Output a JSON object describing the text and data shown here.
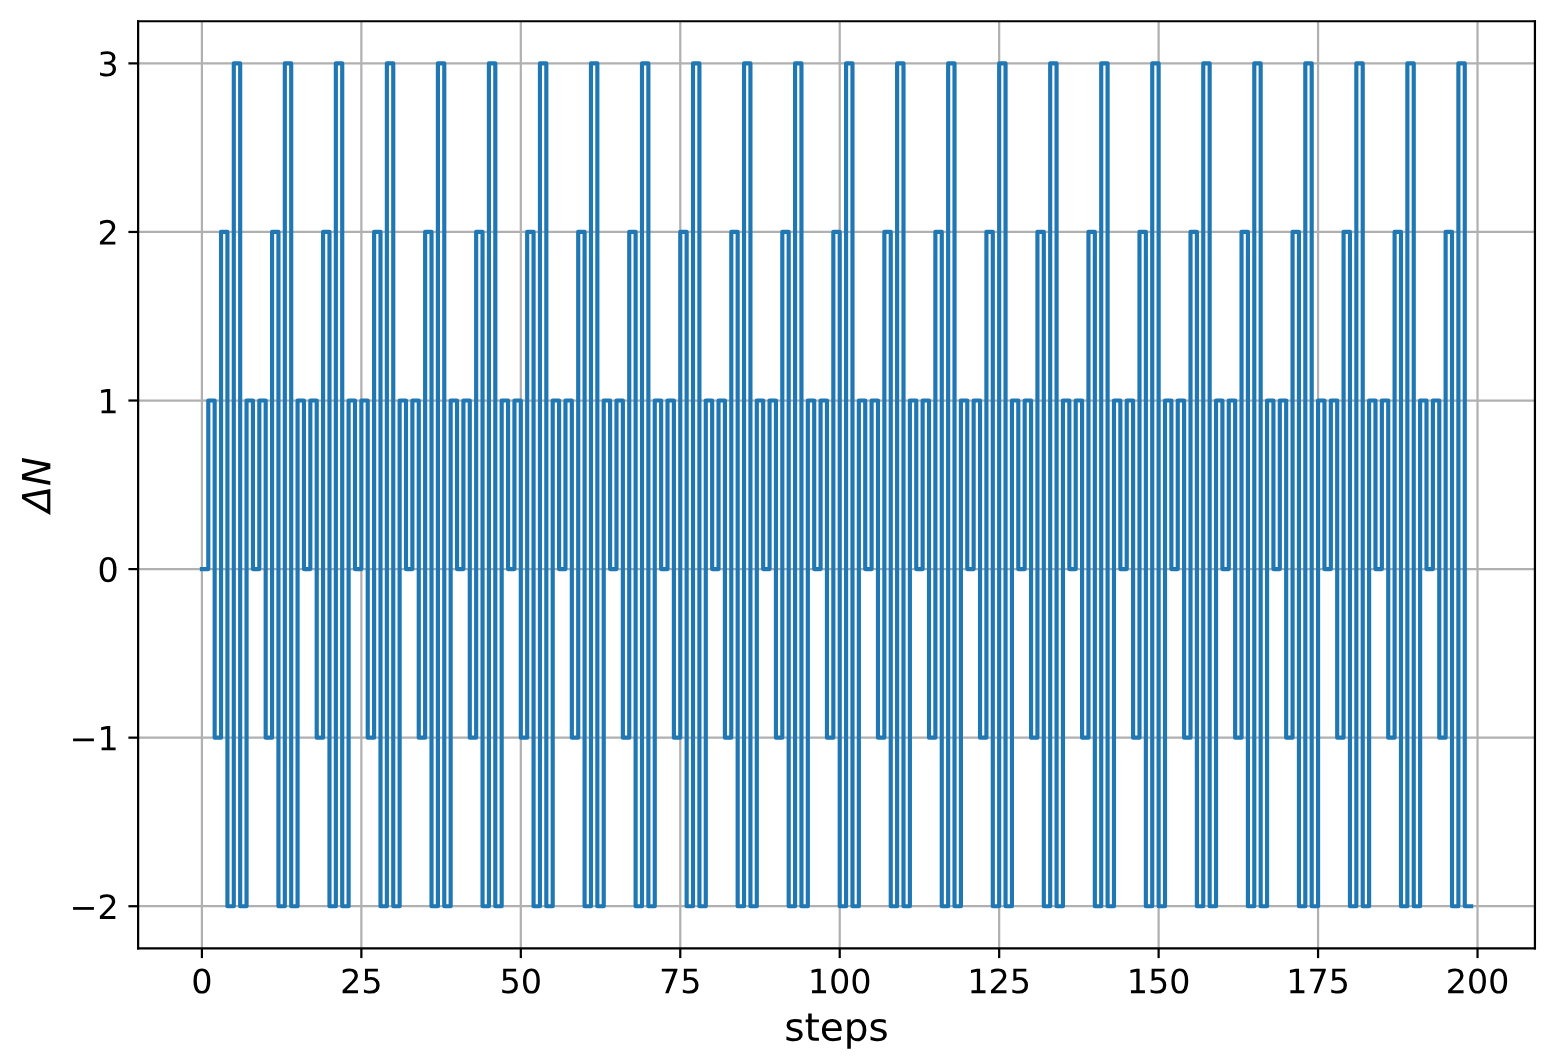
{
  "chart_data": {
    "type": "step",
    "xlabel": "steps",
    "ylabel": "ΔN",
    "xlim": [
      -10,
      209
    ],
    "ylim": [
      -2.25,
      3.25
    ],
    "xticks": [
      0,
      25,
      50,
      75,
      100,
      125,
      150,
      175,
      200
    ],
    "yticks": [
      -2,
      -1,
      0,
      1,
      2,
      3
    ],
    "grid": true,
    "line_style": "solid",
    "series": [
      {
        "color": "#1f77b4",
        "x": [
          0,
          1,
          2,
          3,
          4,
          5,
          6,
          7,
          8,
          9,
          10,
          11,
          12,
          13,
          14,
          15,
          16,
          17,
          18,
          19,
          20,
          21,
          22,
          23,
          24,
          25,
          26,
          27,
          28,
          29,
          30,
          31,
          32,
          33,
          34,
          35,
          36,
          37,
          38,
          39,
          40,
          41,
          42,
          43,
          44,
          45,
          46,
          47,
          48,
          49,
          50,
          51,
          52,
          53,
          54,
          55,
          56,
          57,
          58,
          59,
          60,
          61,
          62,
          63,
          64,
          65,
          66,
          67,
          68,
          69,
          70,
          71,
          72,
          73,
          74,
          75,
          76,
          77,
          78,
          79,
          80,
          81,
          82,
          83,
          84,
          85,
          86,
          87,
          88,
          89,
          90,
          91,
          92,
          93,
          94,
          95,
          96,
          97,
          98,
          99,
          100,
          101,
          102,
          103,
          104,
          105,
          106,
          107,
          108,
          109,
          110,
          111,
          112,
          113,
          114,
          115,
          116,
          117,
          118,
          119,
          120,
          121,
          122,
          123,
          124,
          125,
          126,
          127,
          128,
          129,
          130,
          131,
          132,
          133,
          134,
          135,
          136,
          137,
          138,
          139,
          140,
          141,
          142,
          143,
          144,
          145,
          146,
          147,
          148,
          149,
          150,
          151,
          152,
          153,
          154,
          155,
          156,
          157,
          158,
          159,
          160,
          161,
          162,
          163,
          164,
          165,
          166,
          167,
          168,
          169,
          170,
          171,
          172,
          173,
          174,
          175,
          176,
          177,
          178,
          179,
          180,
          181,
          182,
          183,
          184,
          185,
          186,
          187,
          188,
          189,
          190,
          191,
          192,
          193,
          194,
          195,
          196,
          197,
          198,
          199
        ],
        "values": [
          0,
          1,
          -1,
          2,
          -2,
          3,
          -2,
          1,
          0,
          1,
          -1,
          2,
          -2,
          3,
          -2,
          1,
          0,
          1,
          -1,
          2,
          -2,
          3,
          -2,
          1,
          0,
          1,
          -1,
          2,
          -2,
          3,
          -2,
          1,
          0,
          1,
          -1,
          2,
          -2,
          3,
          -2,
          1,
          0,
          1,
          -1,
          2,
          -2,
          3,
          -2,
          1,
          0,
          1,
          -1,
          2,
          -2,
          3,
          -2,
          1,
          0,
          1,
          -1,
          2,
          -2,
          3,
          -2,
          1,
          0,
          1,
          -1,
          2,
          -2,
          3,
          -2,
          1,
          0,
          1,
          -1,
          2,
          -2,
          3,
          -2,
          1,
          0,
          1,
          -1,
          2,
          -2,
          3,
          -2,
          1,
          0,
          1,
          -1,
          2,
          -2,
          3,
          -2,
          1,
          0,
          1,
          -1,
          2,
          -2,
          3,
          -2,
          1,
          0,
          1,
          -1,
          2,
          -2,
          3,
          -2,
          1,
          0,
          1,
          -1,
          2,
          -2,
          3,
          -2,
          1,
          0,
          1,
          -1,
          2,
          -2,
          3,
          -2,
          1,
          0,
          1,
          -1,
          2,
          -2,
          3,
          -2,
          1,
          0,
          1,
          -1,
          2,
          -2,
          3,
          -2,
          1,
          0,
          1,
          -1,
          2,
          -2,
          3,
          -2,
          1,
          0,
          1,
          -1,
          2,
          -2,
          3,
          -2,
          1,
          0,
          1,
          -1,
          2,
          -2,
          3,
          -2,
          1,
          0,
          1,
          -1,
          2,
          -2,
          3,
          -2,
          1,
          0,
          1,
          -1,
          2,
          -2,
          3,
          -2,
          1,
          0,
          1,
          -1,
          2,
          -2,
          3,
          -2,
          1,
          0,
          1,
          -1,
          2,
          -2,
          3,
          -2,
          -2
        ]
      }
    ]
  }
}
